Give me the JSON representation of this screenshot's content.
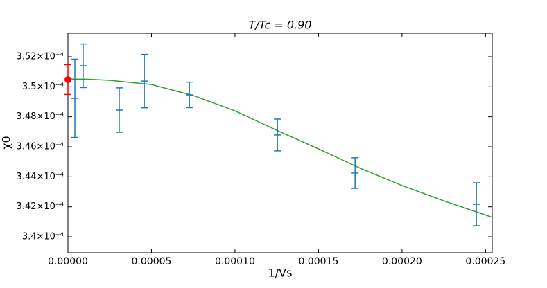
{
  "chart_data": {
    "type": "errorbar",
    "title": "T/Tc = 0.90",
    "x_label": "1/Vs",
    "y_label": "χ0",
    "xlim": [
      0,
      0.000254
    ],
    "ylim": [
      0.00033894,
      0.00035357
    ],
    "xticks": [
      {
        "value": 0,
        "label": "0.00000"
      },
      {
        "value": 5e-05,
        "label": "0.00005"
      },
      {
        "value": 0.0001,
        "label": "0.00010"
      },
      {
        "value": 0.00015,
        "label": "0.00015"
      },
      {
        "value": 0.0002,
        "label": "0.00020"
      },
      {
        "value": 0.00025,
        "label": "0.00025"
      }
    ],
    "yticks": [
      {
        "value": 0.00034,
        "label": "3.4×10⁻⁴"
      },
      {
        "value": 0.000342,
        "label": "3.42×10⁻⁴"
      },
      {
        "value": 0.000344,
        "label": "3.44×10⁻⁴"
      },
      {
        "value": 0.000346,
        "label": "3.46×10⁻⁴"
      },
      {
        "value": 0.000348,
        "label": "3.48×10⁻⁴"
      },
      {
        "value": 0.00035,
        "label": "3.5×10⁻⁴"
      },
      {
        "value": 0.000352,
        "label": "3.52×10⁻⁴"
      }
    ],
    "grid": false,
    "series": [
      {
        "type": "line",
        "color": "#2ca02c",
        "x": [
          0,
          1.25e-05,
          2.5e-05,
          5e-05,
          7.5e-05,
          0.0001,
          0.000125,
          0.00015,
          0.000175,
          0.0002,
          0.000225,
          0.000254
        ],
        "values": [
          0.00035052,
          0.0003505,
          0.00035043,
          0.00035015,
          0.00034942,
          0.0003484,
          0.0003471,
          0.00034586,
          0.00034457,
          0.00034342,
          0.0003424,
          0.0003413
        ]
      },
      {
        "type": "errorbar",
        "color": "#1f77b4",
        "marker": "_",
        "x": [
          4.15e-06,
          9.1e-06,
          3.07e-05,
          4.57e-05,
          7.27e-05,
          0.0001254,
          0.0001719,
          0.0002445
        ],
        "values": [
          0.00034923,
          0.0003514,
          0.00034845,
          0.00035038,
          0.00034946,
          0.00034679,
          0.00034425,
          0.00034217
        ],
        "errors": [
          2.61e-06,
          1.45e-06,
          1.48e-06,
          1.78e-06,
          8.5e-07,
          1.06e-06,
          1.02e-06,
          1.43e-06
        ]
      },
      {
        "type": "errorbar",
        "color": "#ff0000",
        "marker": "o",
        "x": [
          0
        ],
        "values": [
          0.00035048
        ],
        "errors": [
          9.9e-07
        ]
      }
    ]
  }
}
